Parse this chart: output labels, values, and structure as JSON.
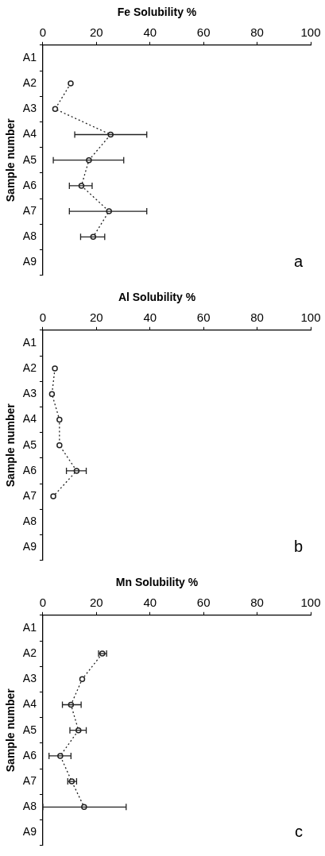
{
  "chart_data": [
    {
      "type": "line",
      "title": "Fe Solubility %",
      "ylabel": "Sample number",
      "orientation": "horizontal",
      "categories": [
        "A1",
        "A2",
        "A3",
        "A4",
        "A5",
        "A6",
        "A7",
        "A8",
        "A9"
      ],
      "series": [
        {
          "color": "#222222",
          "values": [
            null,
            10.4,
            4.6,
            25.3,
            17.2,
            14.4,
            24.7,
            18.8,
            null
          ],
          "errors": [
            null,
            null,
            null,
            [
              11.9,
              38.8
            ],
            [
              3.9,
              30.2
            ],
            [
              9.9,
              18.4
            ],
            [
              9.9,
              38.8
            ],
            [
              14.1,
              23.1
            ],
            null
          ]
        }
      ],
      "xlim": [
        0,
        100
      ],
      "xticks": [
        0,
        20,
        40,
        60,
        80,
        100
      ],
      "grid": false,
      "marker": "circle",
      "line_style": "dotted",
      "annotations": [
        "a"
      ]
    },
    {
      "type": "line",
      "title": "Al Solubility %",
      "ylabel": "Sample number",
      "orientation": "horizontal",
      "categories": [
        "A1",
        "A2",
        "A3",
        "A4",
        "A5",
        "A6",
        "A7",
        "A8",
        "A9"
      ],
      "series": [
        {
          "color": "#222222",
          "values": [
            null,
            4.5,
            3.4,
            6.2,
            6.2,
            12.6,
            3.9,
            null,
            null
          ],
          "errors": [
            null,
            null,
            null,
            null,
            null,
            [
              8.8,
              16.2
            ],
            null,
            null,
            null
          ]
        }
      ],
      "xlim": [
        0,
        100
      ],
      "xticks": [
        0,
        20,
        40,
        60,
        80,
        100
      ],
      "grid": false,
      "marker": "circle",
      "line_style": "dotted",
      "annotations": [
        "b"
      ]
    },
    {
      "type": "line",
      "title": "Mn Solubility %",
      "ylabel": "Sample number",
      "orientation": "horizontal",
      "categories": [
        "A1",
        "A2",
        "A3",
        "A4",
        "A5",
        "A6",
        "A7",
        "A8",
        "A9"
      ],
      "series": [
        {
          "color": "#222222",
          "values": [
            null,
            22.2,
            14.7,
            10.5,
            13.3,
            6.5,
            10.8,
            15.4,
            null
          ],
          "errors": [
            null,
            [
              20.8,
              23.8
            ],
            null,
            [
              7.3,
              14.3
            ],
            [
              10.1,
              16.2
            ],
            [
              2.3,
              10.5
            ],
            [
              9.3,
              12.6
            ],
            [
              0,
              31.1
            ],
            null
          ]
        }
      ],
      "xlim": [
        0,
        100
      ],
      "xticks": [
        0,
        20,
        40,
        60,
        80,
        100
      ],
      "grid": false,
      "marker": "circle",
      "line_style": "dotted",
      "annotations": [
        "c"
      ]
    }
  ]
}
